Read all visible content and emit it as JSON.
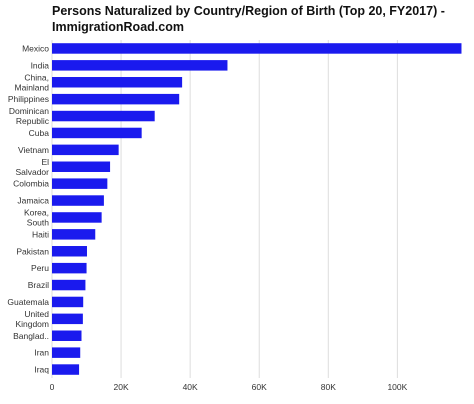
{
  "title": "Persons Naturalized by Country/Region of Birth (Top 20, FY2017) - ImmigrationRoad.com",
  "colors": {
    "bar": "#1a1aee",
    "grid": "#dddddd",
    "axis": "#333333"
  },
  "chart_data": {
    "type": "bar",
    "orientation": "horizontal",
    "title": "Persons Naturalized by Country/Region of Birth (Top 20, FY2017) - ImmigrationRoad.com",
    "xlabel": "",
    "ylabel": "",
    "xlim": [
      0,
      119000
    ],
    "grid": true,
    "x_ticks": [
      {
        "value": 0,
        "label": "0"
      },
      {
        "value": 20000,
        "label": "20K"
      },
      {
        "value": 40000,
        "label": "40K"
      },
      {
        "value": 60000,
        "label": "60K"
      },
      {
        "value": 80000,
        "label": "80K"
      },
      {
        "value": 100000,
        "label": "100K"
      }
    ],
    "categories": [
      [
        "Mexico"
      ],
      [
        "India"
      ],
      [
        "China,",
        "Mainland"
      ],
      [
        "Philippines"
      ],
      [
        "Dominican",
        "Republic"
      ],
      [
        "Cuba"
      ],
      [
        "Vietnam"
      ],
      [
        "El",
        "Salvador"
      ],
      [
        "Colombia"
      ],
      [
        "Jamaica"
      ],
      [
        "Korea,",
        "South"
      ],
      [
        "Haiti"
      ],
      [
        "Pakistan"
      ],
      [
        "Peru"
      ],
      [
        "Brazil"
      ],
      [
        "Guatemala"
      ],
      [
        "United",
        "Kingdom"
      ],
      [
        "Banglad.."
      ],
      [
        "Iran"
      ],
      [
        "Iraq"
      ]
    ],
    "values": [
      118559,
      50802,
      37674,
      36828,
      29734,
      25961,
      19297,
      16815,
      16023,
      15028,
      14370,
      12525,
      10130,
      10007,
      9678,
      9035,
      8936,
      8541,
      8173,
      7840
    ]
  }
}
